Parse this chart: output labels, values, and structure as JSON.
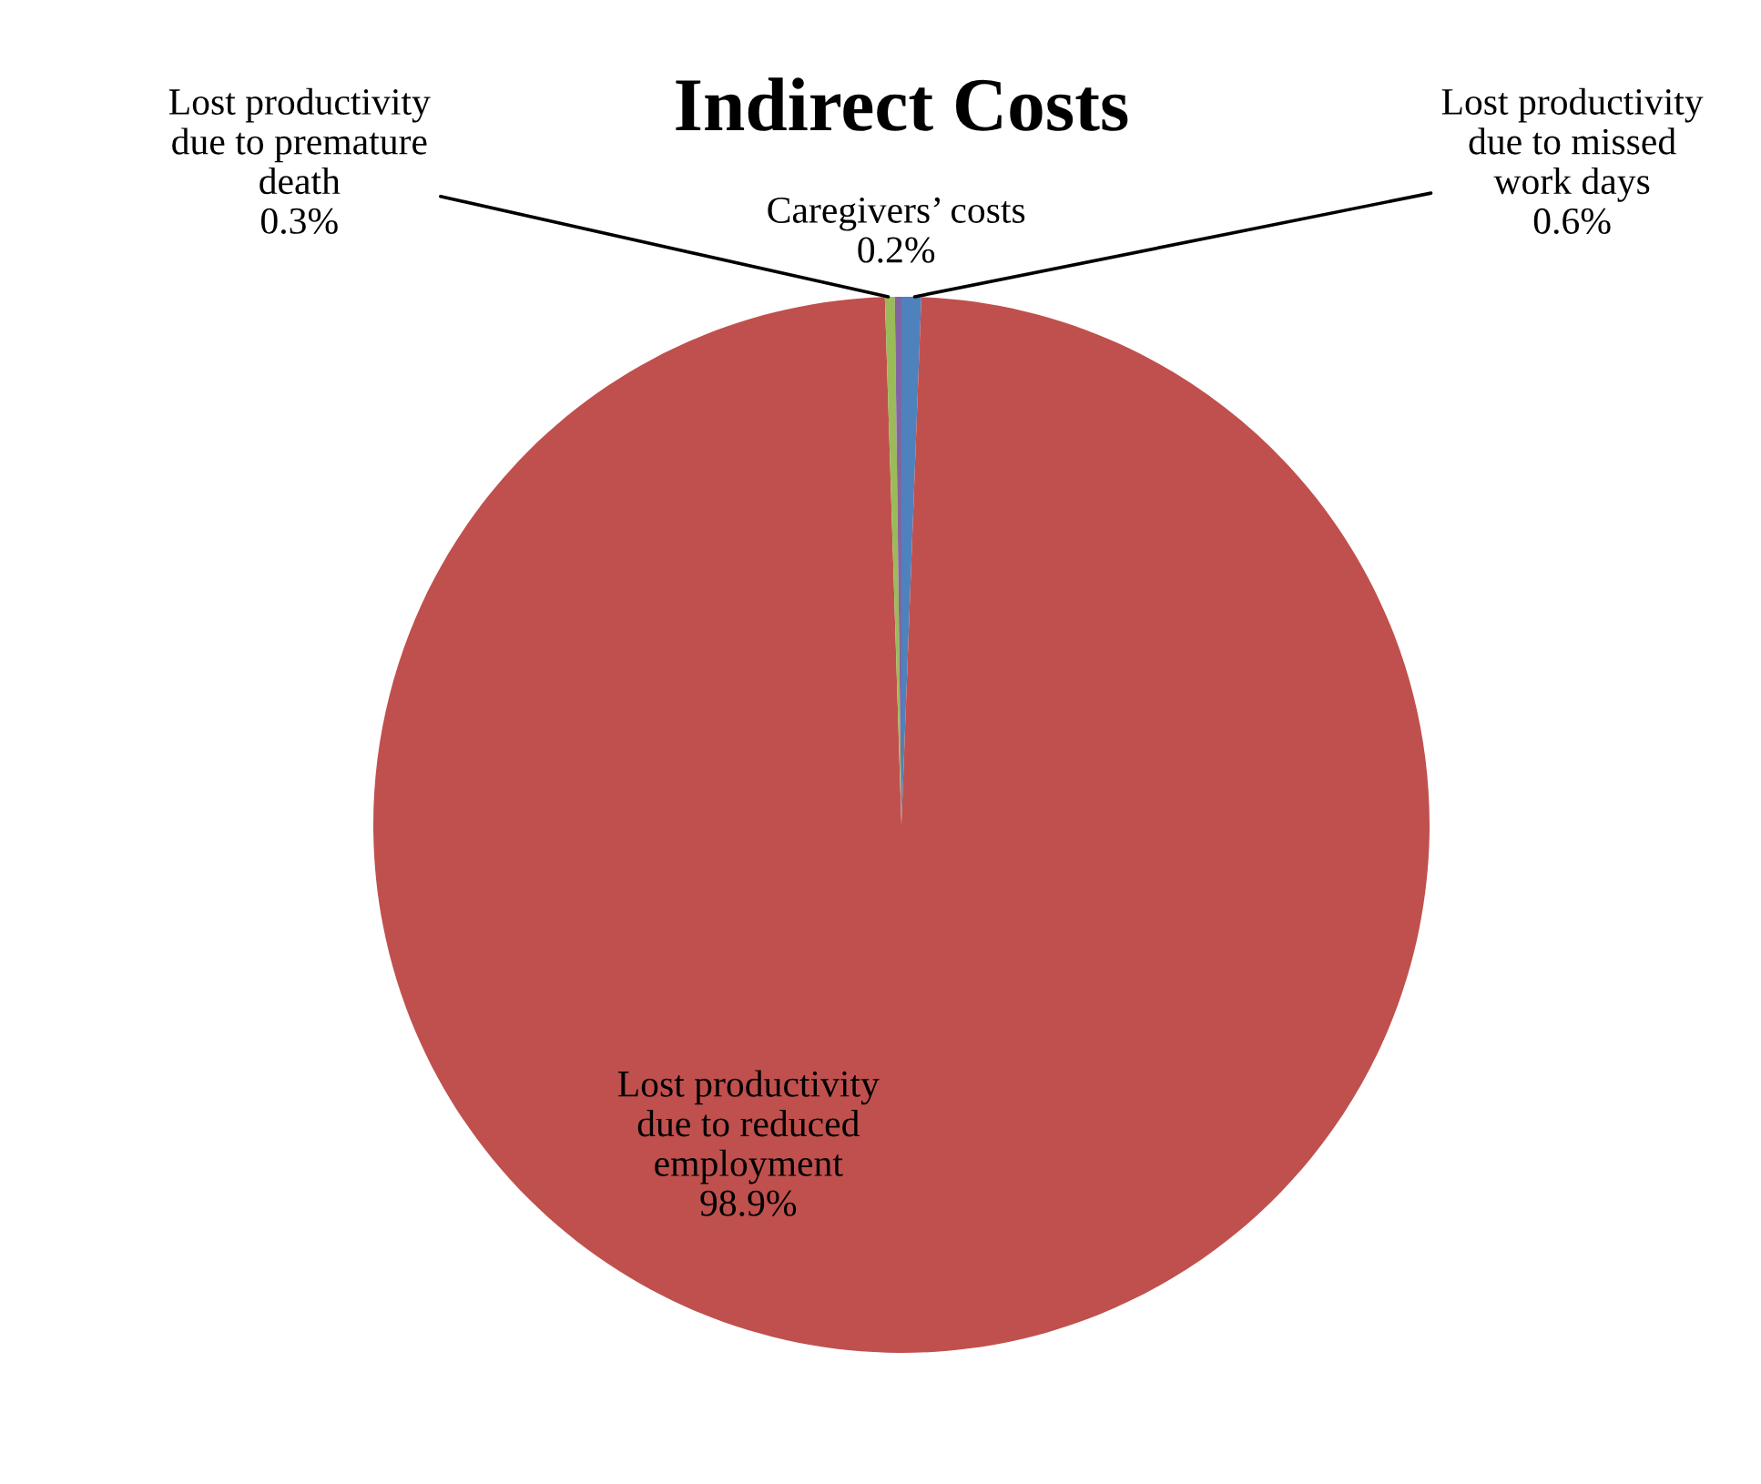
{
  "chart_data": {
    "type": "pie",
    "title": "Indirect Costs",
    "categories": [
      "Lost productivity\ndue to missed\nwork days",
      "Lost productivity\ndue to reduced\nemployment",
      "Lost productivity\ndue to premature\ndeath",
      "Caregivers’ costs"
    ],
    "values": [
      0.6,
      98.9,
      0.3,
      0.2
    ],
    "colors": [
      "#4f81bd",
      "#c0504d",
      "#9bbb59",
      "#8064a2"
    ],
    "value_labels": [
      "0.6%",
      "98.9%",
      "0.3%",
      "0.2%"
    ]
  }
}
